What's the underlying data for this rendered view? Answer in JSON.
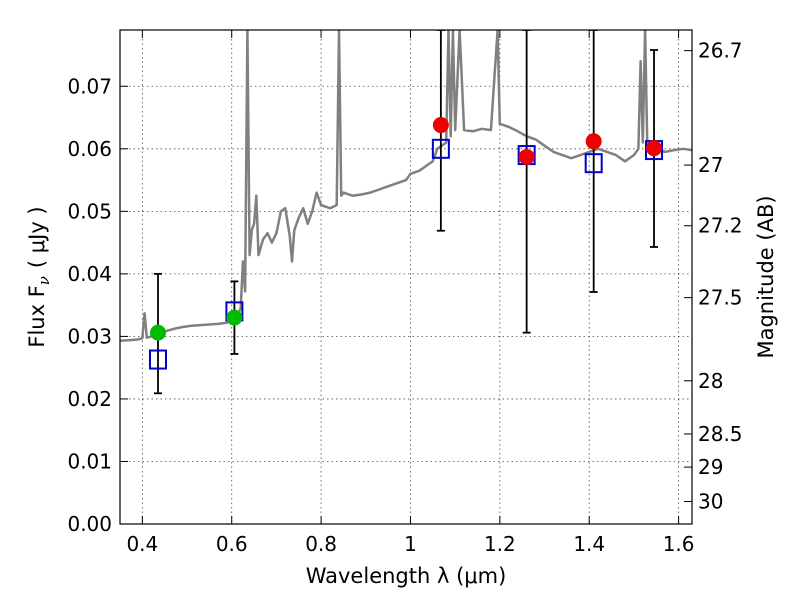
{
  "chart_data": {
    "type": "scatter",
    "xlabel": "Wavelength  λ (μm)",
    "ylabel_left": "Flux  F",
    "ylabel_left_sub": "ν",
    "ylabel_left_unit": "( μJy )",
    "ylabel_right": "Magnitude (AB)",
    "xlim": [
      0.35,
      1.63
    ],
    "ylim": [
      0.0,
      0.079
    ],
    "xticks": [
      0.4,
      0.6,
      0.8,
      1.0,
      1.2,
      1.4,
      1.6
    ],
    "xtick_labels": [
      "0.4",
      "0.6",
      "0.8",
      "1",
      "1.2",
      "1.4",
      "1.6"
    ],
    "yticks": [
      0.0,
      0.01,
      0.02,
      0.03,
      0.04,
      0.05,
      0.06,
      0.07
    ],
    "ytick_labels": [
      "0.00",
      "0.01",
      "0.02",
      "0.03",
      "0.04",
      "0.05",
      "0.06",
      "0.07"
    ],
    "right_ticks": [
      {
        "label": "26.7",
        "flux": 0.0757
      },
      {
        "label": "27",
        "flux": 0.0574
      },
      {
        "label": "27.2",
        "flux": 0.0477
      },
      {
        "label": "27.5",
        "flux": 0.0362
      },
      {
        "label": "28",
        "flux": 0.0229
      },
      {
        "label": "28.5",
        "flux": 0.0144
      },
      {
        "label": "29",
        "flux": 0.0091
      },
      {
        "label": "30",
        "flux": 0.0036
      }
    ],
    "grid": true,
    "colors": {
      "spectrum": "#808080",
      "model": "#0000cc",
      "observed_optical": "#00bb00",
      "observed_nir": "#ee0000",
      "errorbar": "#000000"
    },
    "spectrum": [
      [
        0.35,
        0.0293
      ],
      [
        0.37,
        0.0294
      ],
      [
        0.39,
        0.0295
      ],
      [
        0.4,
        0.0297
      ],
      [
        0.405,
        0.0337
      ],
      [
        0.41,
        0.0298
      ],
      [
        0.43,
        0.0302
      ],
      [
        0.45,
        0.0308
      ],
      [
        0.47,
        0.0312
      ],
      [
        0.49,
        0.0315
      ],
      [
        0.51,
        0.0317
      ],
      [
        0.53,
        0.0318
      ],
      [
        0.55,
        0.0319
      ],
      [
        0.57,
        0.032
      ],
      [
        0.59,
        0.0322
      ],
      [
        0.61,
        0.0328
      ],
      [
        0.62,
        0.0345
      ],
      [
        0.625,
        0.042
      ],
      [
        0.63,
        0.0372
      ],
      [
        0.635,
        0.079
      ],
      [
        0.64,
        0.043
      ],
      [
        0.645,
        0.047
      ],
      [
        0.65,
        0.048
      ],
      [
        0.655,
        0.0525
      ],
      [
        0.66,
        0.043
      ],
      [
        0.67,
        0.0455
      ],
      [
        0.68,
        0.0465
      ],
      [
        0.69,
        0.045
      ],
      [
        0.7,
        0.0465
      ],
      [
        0.71,
        0.05
      ],
      [
        0.72,
        0.0505
      ],
      [
        0.73,
        0.046
      ],
      [
        0.735,
        0.042
      ],
      [
        0.74,
        0.047
      ],
      [
        0.75,
        0.049
      ],
      [
        0.76,
        0.0505
      ],
      [
        0.77,
        0.048
      ],
      [
        0.78,
        0.05
      ],
      [
        0.79,
        0.053
      ],
      [
        0.8,
        0.051
      ],
      [
        0.82,
        0.0505
      ],
      [
        0.835,
        0.051
      ],
      [
        0.84,
        0.079
      ],
      [
        0.845,
        0.0525
      ],
      [
        0.85,
        0.053
      ],
      [
        0.87,
        0.0525
      ],
      [
        0.89,
        0.0527
      ],
      [
        0.91,
        0.053
      ],
      [
        0.93,
        0.0535
      ],
      [
        0.95,
        0.054
      ],
      [
        0.97,
        0.0545
      ],
      [
        0.99,
        0.055
      ],
      [
        1.0,
        0.056
      ],
      [
        1.02,
        0.0565
      ],
      [
        1.04,
        0.0575
      ],
      [
        1.05,
        0.058
      ],
      [
        1.06,
        0.06
      ],
      [
        1.08,
        0.061
      ],
      [
        1.085,
        0.079
      ],
      [
        1.09,
        0.062
      ],
      [
        1.095,
        0.079
      ],
      [
        1.1,
        0.063
      ],
      [
        1.11,
        0.079
      ],
      [
        1.12,
        0.063
      ],
      [
        1.14,
        0.0628
      ],
      [
        1.16,
        0.0632
      ],
      [
        1.18,
        0.063
      ],
      [
        1.195,
        0.079
      ],
      [
        1.2,
        0.064
      ],
      [
        1.22,
        0.0635
      ],
      [
        1.24,
        0.0628
      ],
      [
        1.26,
        0.062
      ],
      [
        1.28,
        0.0615
      ],
      [
        1.3,
        0.0605
      ],
      [
        1.32,
        0.0595
      ],
      [
        1.34,
        0.059
      ],
      [
        1.36,
        0.0585
      ],
      [
        1.38,
        0.059
      ],
      [
        1.4,
        0.0595
      ],
      [
        1.42,
        0.06
      ],
      [
        1.44,
        0.0595
      ],
      [
        1.46,
        0.059
      ],
      [
        1.48,
        0.058
      ],
      [
        1.5,
        0.059
      ],
      [
        1.51,
        0.06
      ],
      [
        1.515,
        0.074
      ],
      [
        1.52,
        0.061
      ],
      [
        1.525,
        0.079
      ],
      [
        1.53,
        0.0605
      ],
      [
        1.55,
        0.06
      ],
      [
        1.57,
        0.0595
      ],
      [
        1.59,
        0.0598
      ],
      [
        1.61,
        0.06
      ],
      [
        1.63,
        0.0598
      ]
    ],
    "model_photometry": [
      {
        "x": 0.435,
        "y": 0.0263
      },
      {
        "x": 0.606,
        "y": 0.034
      },
      {
        "x": 1.068,
        "y": 0.06
      },
      {
        "x": 1.26,
        "y": 0.059
      },
      {
        "x": 1.41,
        "y": 0.0577
      },
      {
        "x": 1.545,
        "y": 0.0598
      }
    ],
    "observed_photometry": [
      {
        "x": 0.435,
        "y": 0.0306,
        "err_low": 0.0209,
        "err_high": 0.04,
        "band": "optical"
      },
      {
        "x": 0.606,
        "y": 0.033,
        "err_low": 0.0272,
        "err_high": 0.0388,
        "band": "optical"
      },
      {
        "x": 1.068,
        "y": 0.0638,
        "err_low": 0.0469,
        "err_high": 0.079,
        "band": "nir"
      },
      {
        "x": 1.26,
        "y": 0.0587,
        "err_low": 0.0306,
        "err_high": 0.079,
        "band": "nir"
      },
      {
        "x": 1.41,
        "y": 0.0612,
        "err_low": 0.0371,
        "err_high": 0.079,
        "band": "nir"
      },
      {
        "x": 1.545,
        "y": 0.0601,
        "err_low": 0.0443,
        "err_high": 0.0758,
        "band": "nir"
      }
    ]
  }
}
